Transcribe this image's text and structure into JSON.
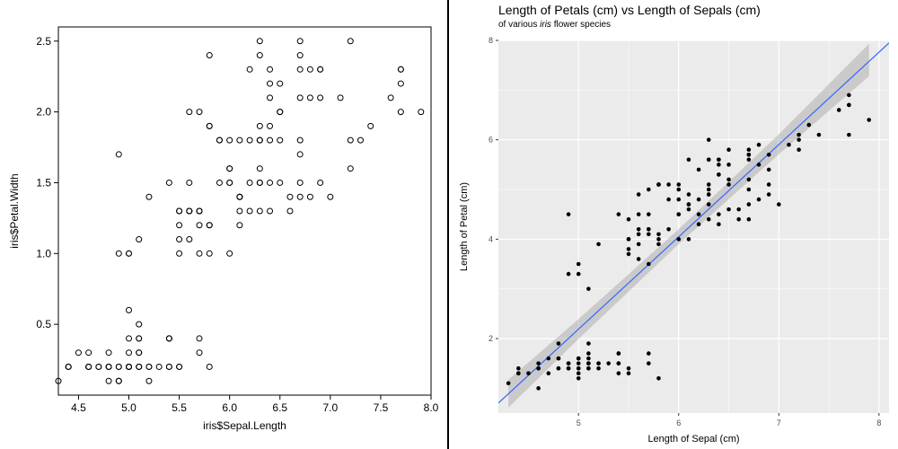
{
  "left_chart": {
    "type": "scatter",
    "xlabel": "iris$Sepal.Length",
    "ylabel": "iris$Petal.Width",
    "xlim": [
      4.3,
      8.0
    ],
    "ylim": [
      0.0,
      2.6
    ],
    "xticks": [
      4.5,
      5.0,
      5.5,
      6.0,
      6.5,
      7.0,
      7.5,
      8.0
    ],
    "yticks": [
      0.5,
      1.0,
      1.5,
      2.0,
      2.5
    ],
    "point_style": "open-circle",
    "point_radius": 3,
    "point_stroke": "#000000",
    "point_fill": "none",
    "background": "#ffffff",
    "axis_color": "#000000",
    "tick_fontsize": 12,
    "label_fontsize": 12,
    "data": [
      [
        5.1,
        0.2
      ],
      [
        4.9,
        0.2
      ],
      [
        4.7,
        0.2
      ],
      [
        4.6,
        0.2
      ],
      [
        5.0,
        0.2
      ],
      [
        5.4,
        0.4
      ],
      [
        4.6,
        0.3
      ],
      [
        5.0,
        0.2
      ],
      [
        4.4,
        0.2
      ],
      [
        4.9,
        0.1
      ],
      [
        5.4,
        0.2
      ],
      [
        4.8,
        0.2
      ],
      [
        4.8,
        0.1
      ],
      [
        4.3,
        0.1
      ],
      [
        5.8,
        0.2
      ],
      [
        5.7,
        0.4
      ],
      [
        5.4,
        0.4
      ],
      [
        5.1,
        0.3
      ],
      [
        5.7,
        0.3
      ],
      [
        5.1,
        0.3
      ],
      [
        5.4,
        0.2
      ],
      [
        5.1,
        0.4
      ],
      [
        4.6,
        0.2
      ],
      [
        5.1,
        0.5
      ],
      [
        4.8,
        0.2
      ],
      [
        5.0,
        0.2
      ],
      [
        5.0,
        0.4
      ],
      [
        5.2,
        0.2
      ],
      [
        5.2,
        0.2
      ],
      [
        4.7,
        0.2
      ],
      [
        4.8,
        0.2
      ],
      [
        5.4,
        0.4
      ],
      [
        5.2,
        0.1
      ],
      [
        5.5,
        0.2
      ],
      [
        4.9,
        0.2
      ],
      [
        5.0,
        0.2
      ],
      [
        5.5,
        0.2
      ],
      [
        4.9,
        0.1
      ],
      [
        4.4,
        0.2
      ],
      [
        5.1,
        0.2
      ],
      [
        5.0,
        0.3
      ],
      [
        4.5,
        0.3
      ],
      [
        4.4,
        0.2
      ],
      [
        5.0,
        0.6
      ],
      [
        5.1,
        0.4
      ],
      [
        4.8,
        0.3
      ],
      [
        5.1,
        0.2
      ],
      [
        4.6,
        0.2
      ],
      [
        5.3,
        0.2
      ],
      [
        5.0,
        0.2
      ],
      [
        7.0,
        1.4
      ],
      [
        6.4,
        1.5
      ],
      [
        6.9,
        1.5
      ],
      [
        5.5,
        1.3
      ],
      [
        6.5,
        1.5
      ],
      [
        5.7,
        1.3
      ],
      [
        6.3,
        1.6
      ],
      [
        4.9,
        1.0
      ],
      [
        6.6,
        1.3
      ],
      [
        5.2,
        1.4
      ],
      [
        5.0,
        1.0
      ],
      [
        5.9,
        1.5
      ],
      [
        6.0,
        1.0
      ],
      [
        6.1,
        1.4
      ],
      [
        5.6,
        1.3
      ],
      [
        6.7,
        1.4
      ],
      [
        5.6,
        1.5
      ],
      [
        5.8,
        1.0
      ],
      [
        6.2,
        1.5
      ],
      [
        5.6,
        1.1
      ],
      [
        5.9,
        1.8
      ],
      [
        6.1,
        1.3
      ],
      [
        6.3,
        1.5
      ],
      [
        6.1,
        1.2
      ],
      [
        6.4,
        1.3
      ],
      [
        6.6,
        1.4
      ],
      [
        6.8,
        1.4
      ],
      [
        6.7,
        1.7
      ],
      [
        6.0,
        1.5
      ],
      [
        5.7,
        1.0
      ],
      [
        5.5,
        1.1
      ],
      [
        5.5,
        1.0
      ],
      [
        5.8,
        1.2
      ],
      [
        6.0,
        1.6
      ],
      [
        5.4,
        1.5
      ],
      [
        6.0,
        1.6
      ],
      [
        6.7,
        1.5
      ],
      [
        6.3,
        1.3
      ],
      [
        5.6,
        1.3
      ],
      [
        5.5,
        1.3
      ],
      [
        5.5,
        1.2
      ],
      [
        6.1,
        1.4
      ],
      [
        5.8,
        1.2
      ],
      [
        5.0,
        1.0
      ],
      [
        5.6,
        1.3
      ],
      [
        5.7,
        1.2
      ],
      [
        5.7,
        1.3
      ],
      [
        6.2,
        1.3
      ],
      [
        5.1,
        1.1
      ],
      [
        5.7,
        1.3
      ],
      [
        6.3,
        2.5
      ],
      [
        5.8,
        1.9
      ],
      [
        7.1,
        2.1
      ],
      [
        6.3,
        1.8
      ],
      [
        6.5,
        2.2
      ],
      [
        7.6,
        2.1
      ],
      [
        4.9,
        1.7
      ],
      [
        7.3,
        1.8
      ],
      [
        6.7,
        1.8
      ],
      [
        7.2,
        2.5
      ],
      [
        6.5,
        2.0
      ],
      [
        6.4,
        1.9
      ],
      [
        6.8,
        2.1
      ],
      [
        5.7,
        2.0
      ],
      [
        5.8,
        2.4
      ],
      [
        6.4,
        2.3
      ],
      [
        6.5,
        1.8
      ],
      [
        7.7,
        2.2
      ],
      [
        7.7,
        2.3
      ],
      [
        6.0,
        1.5
      ],
      [
        6.9,
        2.3
      ],
      [
        5.6,
        2.0
      ],
      [
        7.7,
        2.0
      ],
      [
        6.3,
        1.8
      ],
      [
        6.7,
        2.1
      ],
      [
        7.2,
        1.8
      ],
      [
        6.2,
        1.8
      ],
      [
        6.1,
        1.8
      ],
      [
        6.4,
        2.1
      ],
      [
        7.2,
        1.6
      ],
      [
        7.4,
        1.9
      ],
      [
        7.9,
        2.0
      ],
      [
        6.4,
        2.2
      ],
      [
        6.3,
        1.5
      ],
      [
        6.1,
        1.4
      ],
      [
        7.7,
        2.3
      ],
      [
        6.3,
        2.4
      ],
      [
        6.4,
        1.8
      ],
      [
        6.0,
        1.8
      ],
      [
        6.9,
        2.1
      ],
      [
        6.7,
        2.4
      ],
      [
        6.9,
        2.3
      ],
      [
        5.8,
        1.9
      ],
      [
        6.8,
        2.3
      ],
      [
        6.7,
        2.5
      ],
      [
        6.7,
        2.3
      ],
      [
        6.3,
        1.9
      ],
      [
        6.5,
        2.0
      ],
      [
        6.2,
        2.3
      ],
      [
        5.9,
        1.8
      ]
    ]
  },
  "right_chart": {
    "type": "scatter-with-lm",
    "title": "Length of Petals (cm) vs Length of Sepals (cm)",
    "subtitle_pre": "of various ",
    "subtitle_italic": "iris",
    "subtitle_post": " flower species",
    "xlabel": "Length of Sepal (cm)",
    "ylabel": "Length of Petal (cm)",
    "xlim": [
      4.2,
      8.1
    ],
    "ylim": [
      0.5,
      8.0
    ],
    "xticks": [
      5,
      6,
      7,
      8
    ],
    "yticks": [
      2,
      4,
      6,
      8
    ],
    "panel_background": "#ebebeb",
    "grid_major_color": "#ffffff",
    "plot_background": "#ffffff",
    "point_fill": "#000000",
    "point_radius": 2.3,
    "point_alpha": 1.0,
    "line_color": "#3366ff",
    "line_width": 1.2,
    "ribbon_color": "#999999",
    "ribbon_alpha": 0.4,
    "title_fontsize": 14,
    "subtitle_fontsize": 10,
    "label_fontsize": 11,
    "tick_fontsize": 9,
    "lm": {
      "slope": 1.858,
      "intercept": -7.101
    },
    "ribbon": [
      [
        4.3,
        0.61,
        1.17
      ],
      [
        5.0,
        1.99,
        2.39
      ],
      [
        6.0,
        3.9,
        4.2
      ],
      [
        7.0,
        5.71,
        6.11
      ],
      [
        7.9,
        7.28,
        7.93
      ]
    ],
    "data": [
      [
        5.1,
        1.4
      ],
      [
        4.9,
        1.4
      ],
      [
        4.7,
        1.3
      ],
      [
        4.6,
        1.5
      ],
      [
        5.0,
        1.4
      ],
      [
        5.4,
        1.7
      ],
      [
        4.6,
        1.4
      ],
      [
        5.0,
        1.5
      ],
      [
        4.4,
        1.4
      ],
      [
        4.9,
        1.5
      ],
      [
        5.4,
        1.5
      ],
      [
        4.8,
        1.6
      ],
      [
        4.8,
        1.4
      ],
      [
        4.3,
        1.1
      ],
      [
        5.8,
        1.2
      ],
      [
        5.7,
        1.5
      ],
      [
        5.4,
        1.3
      ],
      [
        5.1,
        1.4
      ],
      [
        5.7,
        1.7
      ],
      [
        5.1,
        1.5
      ],
      [
        5.4,
        1.7
      ],
      [
        5.1,
        1.5
      ],
      [
        4.6,
        1.0
      ],
      [
        5.1,
        1.7
      ],
      [
        4.8,
        1.9
      ],
      [
        5.0,
        1.6
      ],
      [
        5.0,
        1.6
      ],
      [
        5.2,
        1.5
      ],
      [
        5.2,
        1.4
      ],
      [
        4.7,
        1.6
      ],
      [
        4.8,
        1.6
      ],
      [
        5.4,
        1.5
      ],
      [
        5.2,
        1.5
      ],
      [
        5.5,
        1.4
      ],
      [
        4.9,
        1.5
      ],
      [
        5.0,
        1.2
      ],
      [
        5.5,
        1.3
      ],
      [
        4.9,
        1.4
      ],
      [
        4.4,
        1.3
      ],
      [
        5.1,
        1.5
      ],
      [
        5.0,
        1.3
      ],
      [
        4.5,
        1.3
      ],
      [
        4.4,
        1.3
      ],
      [
        5.0,
        1.6
      ],
      [
        5.1,
        1.9
      ],
      [
        4.8,
        1.4
      ],
      [
        5.1,
        1.6
      ],
      [
        4.6,
        1.4
      ],
      [
        5.3,
        1.5
      ],
      [
        5.0,
        1.4
      ],
      [
        7.0,
        4.7
      ],
      [
        6.4,
        4.5
      ],
      [
        6.9,
        4.9
      ],
      [
        5.5,
        4.0
      ],
      [
        6.5,
        4.6
      ],
      [
        5.7,
        4.5
      ],
      [
        6.3,
        4.7
      ],
      [
        4.9,
        3.3
      ],
      [
        6.6,
        4.6
      ],
      [
        5.2,
        3.9
      ],
      [
        5.0,
        3.5
      ],
      [
        5.9,
        4.2
      ],
      [
        6.0,
        4.0
      ],
      [
        6.1,
        4.7
      ],
      [
        5.6,
        3.6
      ],
      [
        6.7,
        4.4
      ],
      [
        5.6,
        4.5
      ],
      [
        5.8,
        4.1
      ],
      [
        6.2,
        4.5
      ],
      [
        5.6,
        3.9
      ],
      [
        5.9,
        4.8
      ],
      [
        6.1,
        4.0
      ],
      [
        6.3,
        4.9
      ],
      [
        6.1,
        4.7
      ],
      [
        6.4,
        4.3
      ],
      [
        6.6,
        4.4
      ],
      [
        6.8,
        4.8
      ],
      [
        6.7,
        5.0
      ],
      [
        6.0,
        4.5
      ],
      [
        5.7,
        3.5
      ],
      [
        5.5,
        3.8
      ],
      [
        5.5,
        3.7
      ],
      [
        5.8,
        3.9
      ],
      [
        6.0,
        5.1
      ],
      [
        5.4,
        4.5
      ],
      [
        6.0,
        4.5
      ],
      [
        6.7,
        4.7
      ],
      [
        6.3,
        4.4
      ],
      [
        5.6,
        4.1
      ],
      [
        5.5,
        4.0
      ],
      [
        5.5,
        4.4
      ],
      [
        6.1,
        4.6
      ],
      [
        5.8,
        4.0
      ],
      [
        5.0,
        3.3
      ],
      [
        5.6,
        4.2
      ],
      [
        5.7,
        4.2
      ],
      [
        5.7,
        4.2
      ],
      [
        6.2,
        4.3
      ],
      [
        5.1,
        3.0
      ],
      [
        5.7,
        4.1
      ],
      [
        6.3,
        6.0
      ],
      [
        5.8,
        5.1
      ],
      [
        7.1,
        5.9
      ],
      [
        6.3,
        5.6
      ],
      [
        6.5,
        5.8
      ],
      [
        7.6,
        6.6
      ],
      [
        4.9,
        4.5
      ],
      [
        7.3,
        6.3
      ],
      [
        6.7,
        5.8
      ],
      [
        7.2,
        6.1
      ],
      [
        6.5,
        5.1
      ],
      [
        6.4,
        5.3
      ],
      [
        6.8,
        5.5
      ],
      [
        5.7,
        5.0
      ],
      [
        5.8,
        5.1
      ],
      [
        6.4,
        5.3
      ],
      [
        6.5,
        5.5
      ],
      [
        7.7,
        6.7
      ],
      [
        7.7,
        6.9
      ],
      [
        6.0,
        5.0
      ],
      [
        6.9,
        5.7
      ],
      [
        5.6,
        4.9
      ],
      [
        7.7,
        6.7
      ],
      [
        6.3,
        4.9
      ],
      [
        6.7,
        5.7
      ],
      [
        7.2,
        6.0
      ],
      [
        6.2,
        4.8
      ],
      [
        6.1,
        4.9
      ],
      [
        6.4,
        5.6
      ],
      [
        7.2,
        5.8
      ],
      [
        7.4,
        6.1
      ],
      [
        7.9,
        6.4
      ],
      [
        6.4,
        5.6
      ],
      [
        6.3,
        5.1
      ],
      [
        6.1,
        5.6
      ],
      [
        7.7,
        6.1
      ],
      [
        6.3,
        5.6
      ],
      [
        6.4,
        5.5
      ],
      [
        6.0,
        4.8
      ],
      [
        6.9,
        5.4
      ],
      [
        6.7,
        5.6
      ],
      [
        6.9,
        5.1
      ],
      [
        5.8,
        5.1
      ],
      [
        6.8,
        5.9
      ],
      [
        6.7,
        5.7
      ],
      [
        6.7,
        5.2
      ],
      [
        6.3,
        5.0
      ],
      [
        6.5,
        5.2
      ],
      [
        6.2,
        5.4
      ],
      [
        5.9,
        5.1
      ]
    ]
  }
}
